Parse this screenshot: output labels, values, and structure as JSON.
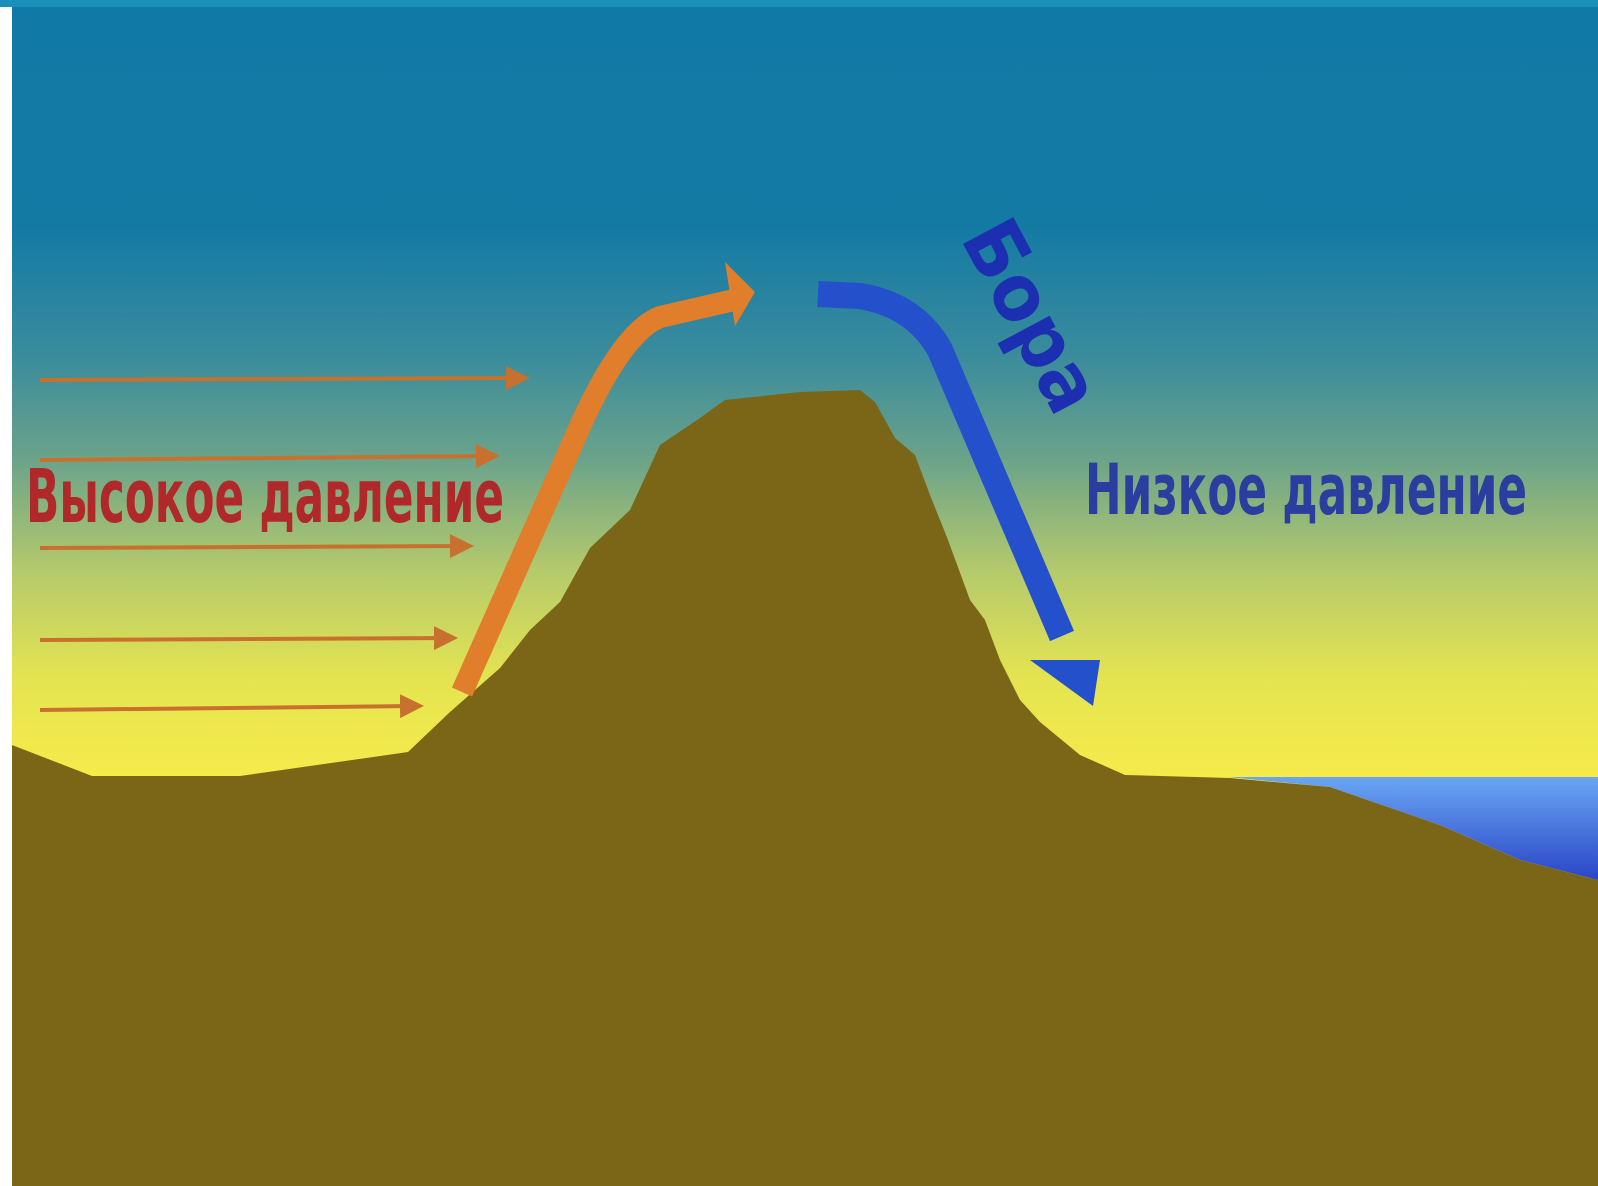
{
  "diagram": {
    "labels": {
      "high_pressure": "Высокое давление",
      "low_pressure": "Низкое давление",
      "bora": "Бора"
    },
    "colors": {
      "sky_top": "#1179a6",
      "sky_mid": "#3f8f9a",
      "sky_horizon": "#f6eb4c",
      "mountain": "#7a6616",
      "sea_top": "#5b9bef",
      "sea_bottom": "#2a45c8",
      "high_pressure_text": "#b0282a",
      "low_pressure_text": "#2b3d9e",
      "bora_text": "#1c2fb0",
      "warm_arrow": "#e07e2b",
      "thin_arrows": "#c8712e",
      "bora_arrow": "#2450cc"
    }
  }
}
